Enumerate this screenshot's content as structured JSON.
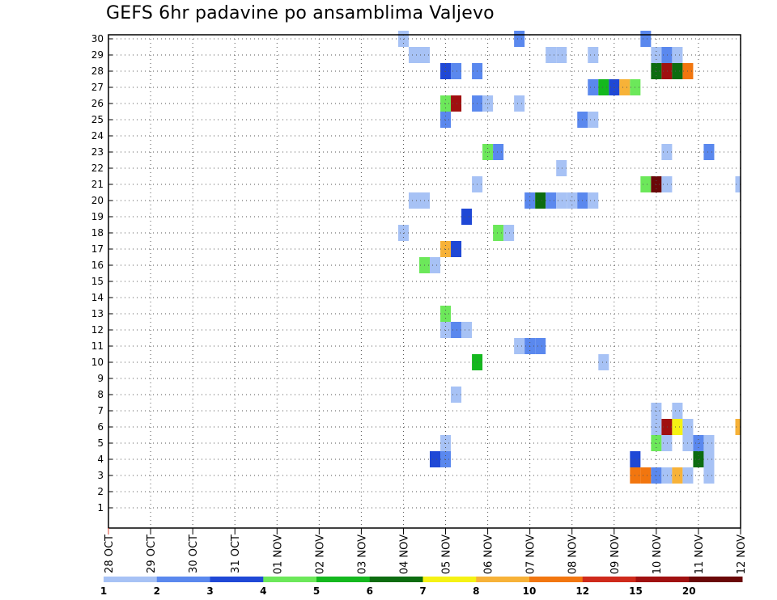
{
  "chart_data": {
    "type": "heatmap",
    "title": "GEFS 6hr padavine po ansamblima Valjevo",
    "xlabel": "",
    "ylabel": "",
    "x_ticks": [
      "28 OCT",
      "29 OCT",
      "30 OCT",
      "31 OCT",
      "01 NOV",
      "02 NOV",
      "03 NOV",
      "04 NOV",
      "05 NOV",
      "06 NOV",
      "07 NOV",
      "08 NOV",
      "09 NOV",
      "10 NOV",
      "11 NOV",
      "12 NOV"
    ],
    "y_ticks": [
      "1",
      "2",
      "3",
      "4",
      "5",
      "6",
      "7",
      "8",
      "9",
      "10",
      "11",
      "12",
      "13",
      "14",
      "15",
      "16",
      "17",
      "18",
      "19",
      "20",
      "21",
      "22",
      "23",
      "24",
      "25",
      "26",
      "27",
      "28",
      "29",
      "30"
    ],
    "xlim_days": [
      0,
      15
    ],
    "ylim": [
      0,
      30
    ],
    "grid": true,
    "time_step_hours": 6,
    "colorbar": {
      "boundaries": [
        "1",
        "2",
        "3",
        "4",
        "5",
        "6",
        "7",
        "8",
        "10",
        "12",
        "15",
        "20"
      ],
      "colors": [
        "#a7c2f5",
        "#5a88ee",
        "#1f48d6",
        "#6ce85a",
        "#14b81e",
        "#0c6c10",
        "#f5f214",
        "#f7b238",
        "#f2760f",
        "#cf2a1b",
        "#a01010",
        "#6a0808"
      ]
    },
    "cells": [
      {
        "m": 30,
        "d": "04 NOV",
        "h": 0,
        "c": 0
      },
      {
        "m": 30,
        "d": "06 NOV",
        "h": 18,
        "c": 1
      },
      {
        "m": 30,
        "d": "09 NOV",
        "h": 18,
        "c": 1
      },
      {
        "m": 29,
        "d": "04 NOV",
        "h": 6,
        "c": 0
      },
      {
        "m": 29,
        "d": "04 NOV",
        "h": 12,
        "c": 0
      },
      {
        "m": 29,
        "d": "07 NOV",
        "h": 12,
        "c": 0
      },
      {
        "m": 29,
        "d": "07 NOV",
        "h": 18,
        "c": 0
      },
      {
        "m": 29,
        "d": "08 NOV",
        "h": 12,
        "c": 0
      },
      {
        "m": 29,
        "d": "10 NOV",
        "h": 0,
        "c": 0
      },
      {
        "m": 29,
        "d": "10 NOV",
        "h": 6,
        "c": 1
      },
      {
        "m": 29,
        "d": "10 NOV",
        "h": 12,
        "c": 0
      },
      {
        "m": 28,
        "d": "05 NOV",
        "h": 0,
        "c": 2
      },
      {
        "m": 28,
        "d": "05 NOV",
        "h": 6,
        "c": 1
      },
      {
        "m": 28,
        "d": "05 NOV",
        "h": 18,
        "c": 1
      },
      {
        "m": 28,
        "d": "10 NOV",
        "h": 0,
        "c": 5
      },
      {
        "m": 28,
        "d": "10 NOV",
        "h": 6,
        "c": 10
      },
      {
        "m": 28,
        "d": "10 NOV",
        "h": 12,
        "c": 5
      },
      {
        "m": 28,
        "d": "10 NOV",
        "h": 18,
        "c": 8
      },
      {
        "m": 27,
        "d": "08 NOV",
        "h": 12,
        "c": 1
      },
      {
        "m": 27,
        "d": "08 NOV",
        "h": 18,
        "c": 4
      },
      {
        "m": 27,
        "d": "09 NOV",
        "h": 0,
        "c": 2
      },
      {
        "m": 27,
        "d": "09 NOV",
        "h": 6,
        "c": 7
      },
      {
        "m": 27,
        "d": "09 NOV",
        "h": 12,
        "c": 3
      },
      {
        "m": 26,
        "d": "05 NOV",
        "h": 0,
        "c": 3
      },
      {
        "m": 26,
        "d": "05 NOV",
        "h": 6,
        "c": 10
      },
      {
        "m": 26,
        "d": "05 NOV",
        "h": 18,
        "c": 1
      },
      {
        "m": 26,
        "d": "06 NOV",
        "h": 0,
        "c": 0
      },
      {
        "m": 26,
        "d": "06 NOV",
        "h": 18,
        "c": 0
      },
      {
        "m": 25,
        "d": "05 NOV",
        "h": 0,
        "c": 1
      },
      {
        "m": 25,
        "d": "08 NOV",
        "h": 6,
        "c": 1
      },
      {
        "m": 25,
        "d": "08 NOV",
        "h": 12,
        "c": 0
      },
      {
        "m": 23,
        "d": "06 NOV",
        "h": 0,
        "c": 3
      },
      {
        "m": 23,
        "d": "06 NOV",
        "h": 6,
        "c": 1
      },
      {
        "m": 23,
        "d": "10 NOV",
        "h": 6,
        "c": 0
      },
      {
        "m": 23,
        "d": "11 NOV",
        "h": 6,
        "c": 1
      },
      {
        "m": 22,
        "d": "07 NOV",
        "h": 18,
        "c": 0
      },
      {
        "m": 21,
        "d": "05 NOV",
        "h": 18,
        "c": 0
      },
      {
        "m": 21,
        "d": "09 NOV",
        "h": 18,
        "c": 3
      },
      {
        "m": 21,
        "d": "10 NOV",
        "h": 0,
        "c": 11
      },
      {
        "m": 21,
        "d": "10 NOV",
        "h": 6,
        "c": 0
      },
      {
        "m": 21,
        "d": "12 NOV",
        "h": 0,
        "c": 0
      },
      {
        "m": 20,
        "d": "04 NOV",
        "h": 6,
        "c": 0
      },
      {
        "m": 20,
        "d": "04 NOV",
        "h": 12,
        "c": 0
      },
      {
        "m": 20,
        "d": "07 NOV",
        "h": 0,
        "c": 1
      },
      {
        "m": 20,
        "d": "07 NOV",
        "h": 6,
        "c": 5
      },
      {
        "m": 20,
        "d": "07 NOV",
        "h": 12,
        "c": 1
      },
      {
        "m": 20,
        "d": "07 NOV",
        "h": 18,
        "c": 0
      },
      {
        "m": 20,
        "d": "08 NOV",
        "h": 0,
        "c": 0
      },
      {
        "m": 20,
        "d": "08 NOV",
        "h": 6,
        "c": 1
      },
      {
        "m": 20,
        "d": "08 NOV",
        "h": 12,
        "c": 0
      },
      {
        "m": 19,
        "d": "05 NOV",
        "h": 12,
        "c": 2
      },
      {
        "m": 18,
        "d": "04 NOV",
        "h": 0,
        "c": 0
      },
      {
        "m": 18,
        "d": "06 NOV",
        "h": 6,
        "c": 3
      },
      {
        "m": 18,
        "d": "06 NOV",
        "h": 12,
        "c": 0
      },
      {
        "m": 17,
        "d": "05 NOV",
        "h": 0,
        "c": 7
      },
      {
        "m": 17,
        "d": "05 NOV",
        "h": 6,
        "c": 2
      },
      {
        "m": 16,
        "d": "04 NOV",
        "h": 12,
        "c": 3
      },
      {
        "m": 16,
        "d": "04 NOV",
        "h": 18,
        "c": 0
      },
      {
        "m": 13,
        "d": "05 NOV",
        "h": 0,
        "c": 3
      },
      {
        "m": 12,
        "d": "05 NOV",
        "h": 0,
        "c": 0
      },
      {
        "m": 12,
        "d": "05 NOV",
        "h": 6,
        "c": 1
      },
      {
        "m": 12,
        "d": "05 NOV",
        "h": 12,
        "c": 0
      },
      {
        "m": 11,
        "d": "06 NOV",
        "h": 18,
        "c": 0
      },
      {
        "m": 11,
        "d": "07 NOV",
        "h": 0,
        "c": 1
      },
      {
        "m": 11,
        "d": "07 NOV",
        "h": 6,
        "c": 1
      },
      {
        "m": 10,
        "d": "05 NOV",
        "h": 18,
        "c": 4
      },
      {
        "m": 10,
        "d": "08 NOV",
        "h": 18,
        "c": 0
      },
      {
        "m": 8,
        "d": "05 NOV",
        "h": 6,
        "c": 0
      },
      {
        "m": 7,
        "d": "10 NOV",
        "h": 0,
        "c": 0
      },
      {
        "m": 7,
        "d": "10 NOV",
        "h": 12,
        "c": 0
      },
      {
        "m": 6,
        "d": "10 NOV",
        "h": 0,
        "c": 0
      },
      {
        "m": 6,
        "d": "10 NOV",
        "h": 6,
        "c": 10
      },
      {
        "m": 6,
        "d": "10 NOV",
        "h": 12,
        "c": 6
      },
      {
        "m": 6,
        "d": "10 NOV",
        "h": 18,
        "c": 0
      },
      {
        "m": 6,
        "d": "12 NOV",
        "h": 0,
        "c": 7
      },
      {
        "m": 5,
        "d": "05 NOV",
        "h": 0,
        "c": 0
      },
      {
        "m": 5,
        "d": "10 NOV",
        "h": 0,
        "c": 3
      },
      {
        "m": 5,
        "d": "10 NOV",
        "h": 6,
        "c": 0
      },
      {
        "m": 5,
        "d": "10 NOV",
        "h": 18,
        "c": 0
      },
      {
        "m": 5,
        "d": "11 NOV",
        "h": 0,
        "c": 1
      },
      {
        "m": 5,
        "d": "11 NOV",
        "h": 6,
        "c": 0
      },
      {
        "m": 4,
        "d": "04 NOV",
        "h": 18,
        "c": 2
      },
      {
        "m": 4,
        "d": "05 NOV",
        "h": 0,
        "c": 1
      },
      {
        "m": 4,
        "d": "09 NOV",
        "h": 12,
        "c": 2
      },
      {
        "m": 4,
        "d": "11 NOV",
        "h": 0,
        "c": 5
      },
      {
        "m": 4,
        "d": "11 NOV",
        "h": 6,
        "c": 0
      },
      {
        "m": 3,
        "d": "09 NOV",
        "h": 12,
        "c": 8
      },
      {
        "m": 3,
        "d": "09 NOV",
        "h": 18,
        "c": 8
      },
      {
        "m": 3,
        "d": "10 NOV",
        "h": 0,
        "c": 1
      },
      {
        "m": 3,
        "d": "10 NOV",
        "h": 6,
        "c": 0
      },
      {
        "m": 3,
        "d": "10 NOV",
        "h": 12,
        "c": 7
      },
      {
        "m": 3,
        "d": "10 NOV",
        "h": 18,
        "c": 0
      },
      {
        "m": 3,
        "d": "11 NOV",
        "h": 6,
        "c": 0
      }
    ]
  }
}
